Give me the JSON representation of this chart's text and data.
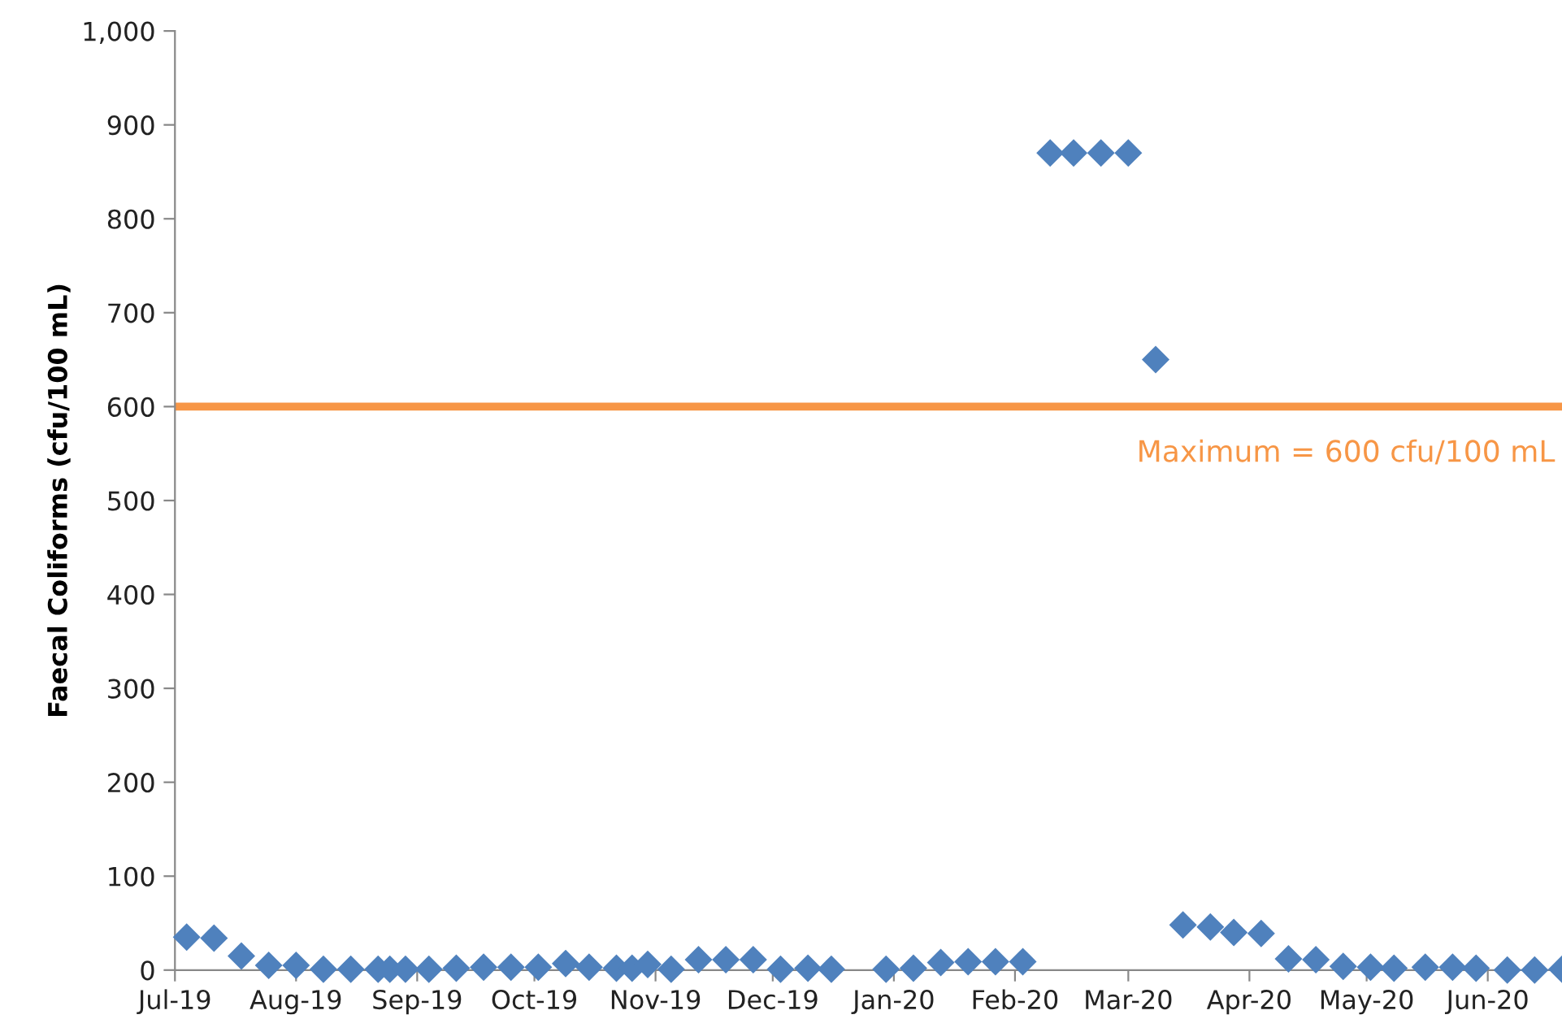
{
  "chart_data": {
    "type": "scatter",
    "ylabel": "Faecal Coliforms (cfu/100 mL)",
    "x": [
      "2019-07-04",
      "2019-07-11",
      "2019-07-18",
      "2019-07-25",
      "2019-08-01",
      "2019-08-08",
      "2019-08-15",
      "2019-08-22",
      "2019-08-25",
      "2019-08-29",
      "2019-09-04",
      "2019-09-11",
      "2019-09-18",
      "2019-09-25",
      "2019-10-02",
      "2019-10-09",
      "2019-10-15",
      "2019-10-22",
      "2019-10-26",
      "2019-10-30",
      "2019-11-05",
      "2019-11-12",
      "2019-11-19",
      "2019-11-26",
      "2019-12-03",
      "2019-12-10",
      "2019-12-16",
      "2019-12-30",
      "2020-01-06",
      "2020-01-13",
      "2020-01-20",
      "2020-01-27",
      "2020-02-03",
      "2020-02-10",
      "2020-02-16",
      "2020-02-23",
      "2020-03-01",
      "2020-03-08",
      "2020-03-15",
      "2020-03-22",
      "2020-03-28",
      "2020-04-04",
      "2020-04-11",
      "2020-04-18",
      "2020-04-25",
      "2020-05-02",
      "2020-05-08",
      "2020-05-16",
      "2020-05-23",
      "2020-05-29",
      "2020-06-06",
      "2020-06-13",
      "2020-06-20"
    ],
    "series": [
      {
        "color": "#4f81bd",
        "values": [
          35,
          34,
          15,
          5,
          5,
          1,
          1,
          1,
          1,
          1,
          1,
          2,
          3,
          3,
          3,
          7,
          3,
          2,
          2,
          6,
          1,
          11,
          11,
          11,
          1,
          2,
          1,
          1,
          2,
          8,
          9,
          9,
          9,
          870,
          870,
          870,
          870,
          650,
          48,
          46,
          40,
          39,
          12,
          11,
          4,
          3,
          2,
          3,
          3,
          2,
          0,
          0,
          1
        ]
      }
    ],
    "marker": "diamond",
    "ylim": [
      0,
      1000
    ],
    "yticks": [
      0,
      100,
      200,
      300,
      400,
      500,
      600,
      700,
      800,
      900,
      {
        "value": 1000,
        "label": "1,000"
      }
    ],
    "xlim": [
      "2019-07-01",
      "2020-06-20"
    ],
    "xticks": [
      {
        "value": "2019-07-01",
        "label": "Jul-19"
      },
      {
        "value": "2019-08-01",
        "label": "Aug-19"
      },
      {
        "value": "2019-09-01",
        "label": "Sep-19"
      },
      {
        "value": "2019-10-01",
        "label": "Oct-19"
      },
      {
        "value": "2019-11-01",
        "label": "Nov-19"
      },
      {
        "value": "2019-12-01",
        "label": "Dec-19"
      },
      {
        "value": "2020-01-01",
        "label": "Jan-20"
      },
      {
        "value": "2020-02-01",
        "label": "Feb-20"
      },
      {
        "value": "2020-03-01",
        "label": "Mar-20"
      },
      {
        "value": "2020-04-01",
        "label": "Apr-20"
      },
      {
        "value": "2020-05-01",
        "label": "May-20"
      },
      {
        "value": "2020-06-01",
        "label": "Jun-20"
      }
    ],
    "ref_lines": [
      {
        "axis": "y",
        "value": 600,
        "label": "Maximum = 600 cfu/100 mL",
        "color": "#f79646"
      }
    ],
    "grid": false,
    "legend": false
  }
}
